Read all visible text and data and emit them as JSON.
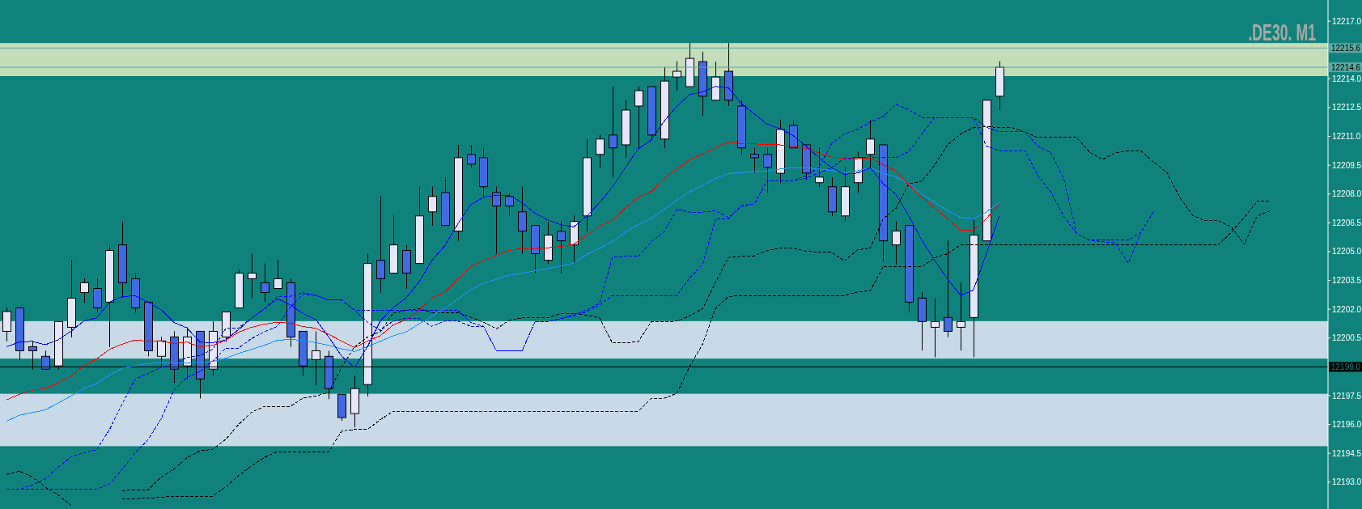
{
  "chart_data": {
    "type": "candlestick",
    "title": ".DE30. M1",
    "categories": [
      null,
      null,
      null,
      null,
      null,
      null,
      null,
      null,
      null,
      null,
      null,
      null,
      null,
      null,
      null,
      null,
      null,
      null,
      null,
      null,
      null,
      null,
      null,
      null,
      null,
      null,
      null,
      null,
      null,
      null,
      null,
      null,
      null,
      null,
      null,
      null,
      null,
      null,
      null,
      null,
      null,
      null,
      null,
      null,
      null,
      null,
      null,
      null,
      null,
      null,
      null,
      null,
      null,
      null,
      null,
      null,
      null,
      null,
      null,
      null,
      null,
      null,
      null,
      null,
      null,
      null,
      null,
      null,
      null,
      null,
      null,
      null,
      null,
      null,
      null,
      null,
      null,
      null,
      null,
      null,
      null,
      null,
      null,
      null,
      null,
      null,
      null,
      null,
      null,
      null,
      null,
      null,
      null,
      null,
      null,
      null,
      null,
      null,
      null,
      null,
      null,
      null,
      null
    ],
    "ohlc": [
      [
        12200.85,
        12202.09,
        12200.33,
        12201.88
      ],
      [
        12202.07,
        12202.07,
        12199.35,
        12199.84
      ],
      [
        12200.05,
        12200.33,
        12198.86,
        12199.84
      ],
      [
        12199.55,
        12199.84,
        12198.88,
        12198.88
      ],
      [
        12199.05,
        12201.36,
        12198.86,
        12201.36
      ],
      [
        12201.06,
        12204.57,
        12200.54,
        12202.58
      ],
      [
        12202.87,
        12203.6,
        12202.34,
        12203.38
      ],
      [
        12203.08,
        12203.6,
        12201.83,
        12202.07
      ],
      [
        12202.37,
        12205.35,
        12200.03,
        12205.06
      ],
      [
        12205.35,
        12206.57,
        12202.58,
        12203.38
      ],
      [
        12203.59,
        12203.88,
        12201.83,
        12202.07
      ],
      [
        12202.37,
        12202.37,
        12199.54,
        12199.84
      ],
      [
        12199.55,
        12200.57,
        12198.98,
        12200.35
      ],
      [
        12200.56,
        12200.85,
        12198.16,
        12198.88
      ],
      [
        12199.05,
        12201.06,
        12198.37,
        12200.56
      ],
      [
        12200.85,
        12200.85,
        12197.35,
        12198.37
      ],
      [
        12198.88,
        12201.37,
        12198.54,
        12200.85
      ],
      [
        12200.56,
        12201.86,
        12200.3,
        12201.86
      ],
      [
        12202.07,
        12204.05,
        12202.07,
        12203.88
      ],
      [
        12203.59,
        12204.89,
        12202.58,
        12203.88
      ],
      [
        12203.38,
        12204.38,
        12202.37,
        12202.87
      ],
      [
        12203.08,
        12204.57,
        12203.08,
        12203.59
      ],
      [
        12203.38,
        12203.59,
        12200.04,
        12200.55
      ],
      [
        12200.85,
        12200.85,
        12198.54,
        12199.05
      ],
      [
        12199.38,
        12200.85,
        12198.05,
        12199.84
      ],
      [
        12199.55,
        12199.84,
        12197.32,
        12197.87
      ],
      [
        12197.57,
        12197.57,
        12196.2,
        12196.36
      ],
      [
        12196.57,
        12198.54,
        12195.85,
        12197.87
      ],
      [
        12198.08,
        12204.89,
        12197.46,
        12204.38
      ],
      [
        12204.55,
        12207.89,
        12202.86,
        12203.59
      ],
      [
        12203.88,
        12206.88,
        12203.88,
        12205.35
      ],
      [
        12205.06,
        12205.35,
        12203.07,
        12203.88
      ],
      [
        12204.38,
        12208.39,
        12204.38,
        12206.86
      ],
      [
        12207.07,
        12208.39,
        12206.35,
        12207.87
      ],
      [
        12208.08,
        12208.88,
        12206.36,
        12206.36
      ],
      [
        12206.07,
        12210.56,
        12205.56,
        12209.89
      ],
      [
        12210.06,
        12210.56,
        12209.37,
        12209.55
      ],
      [
        12209.89,
        12210.39,
        12207.87,
        12208.38
      ],
      [
        12208.08,
        12208.39,
        12204.89,
        12207.37
      ],
      [
        12207.87,
        12208.08,
        12206.85,
        12207.37
      ],
      [
        12207.07,
        12208.39,
        12204.89,
        12206.07
      ],
      [
        12206.36,
        12206.36,
        12203.88,
        12204.89
      ],
      [
        12204.55,
        12206.57,
        12204.36,
        12205.86
      ],
      [
        12206.05,
        12206.57,
        12203.87,
        12205.56
      ],
      [
        12205.35,
        12206.88,
        12204.4,
        12206.57
      ],
      [
        12206.86,
        12210.87,
        12206.05,
        12209.89
      ],
      [
        12210.06,
        12211.08,
        12209.37,
        12210.86
      ],
      [
        12211.07,
        12213.6,
        12208.87,
        12210.4
      ],
      [
        12210.56,
        12212.88,
        12209.89,
        12212.37
      ],
      [
        12212.58,
        12213.6,
        12210.35,
        12213.38
      ],
      [
        12213.59,
        12213.59,
        12210.87,
        12211.07
      ],
      [
        12210.86,
        12214.61,
        12210.38,
        12213.88
      ],
      [
        12214.09,
        12214.91,
        12213.38,
        12214.39
      ],
      [
        12213.59,
        12215.86,
        12213.59,
        12215.06
      ],
      [
        12214.89,
        12215.4,
        12212.08,
        12213.09
      ],
      [
        12212.88,
        12214.89,
        12212.88,
        12214.09
      ],
      [
        12214.39,
        12215.86,
        12212.58,
        12212.88
      ],
      [
        12212.58,
        12212.88,
        12210.06,
        12210.4
      ],
      [
        12210.06,
        12210.4,
        12209.08,
        12209.89
      ],
      [
        12210.06,
        12210.4,
        12208.07,
        12209.39
      ],
      [
        12209.08,
        12211.87,
        12208.57,
        12211.36
      ],
      [
        12211.57,
        12211.87,
        12210.4,
        12210.4
      ],
      [
        12210.56,
        12210.56,
        12208.74,
        12209.09
      ],
      [
        12208.59,
        12210.42,
        12208.36,
        12208.88
      ],
      [
        12208.38,
        12208.88,
        12206.85,
        12207.07
      ],
      [
        12206.86,
        12209.39,
        12206.57,
        12208.38
      ],
      [
        12208.59,
        12210.2,
        12208.07,
        12209.89
      ],
      [
        12210.06,
        12211.87,
        12209.37,
        12210.86
      ],
      [
        12210.56,
        12210.56,
        12204.47,
        12205.56
      ],
      [
        12205.35,
        12206.57,
        12204.33,
        12206.07
      ],
      [
        12206.36,
        12206.36,
        12201.85,
        12202.37
      ],
      [
        12202.58,
        12202.89,
        12199.85,
        12201.36
      ],
      [
        12201.06,
        12202.58,
        12199.5,
        12201.36
      ],
      [
        12201.57,
        12205.58,
        12200.55,
        12200.85
      ],
      [
        12201.06,
        12203.38,
        12199.85,
        12201.36
      ],
      [
        12201.57,
        12206.67,
        12199.5,
        12205.86
      ],
      [
        12205.56,
        12212.88,
        12205.56,
        12212.88
      ],
      [
        12213.09,
        12214.91,
        12212.36,
        12214.6
      ],
      null,
      null,
      null,
      null,
      null,
      null,
      null,
      null,
      null,
      null,
      null,
      null,
      null,
      null,
      null,
      null,
      null,
      null,
      null,
      null,
      null,
      null,
      null,
      null,
      null
    ],
    "series": [
      {
        "type": "line",
        "color": "#000000",
        "line_style": "dashed",
        "values": [
          12193.4,
          12193.57,
          12193.27,
          12192.74,
          12192.35,
          12191.79,
          null,
          null,
          null,
          12192.56,
          12192.6,
          12192.6,
          12193.26,
          12193.68,
          12194.28,
          12194.62,
          12194.71,
          12195.22,
          12196,
          12196.63,
          12196.94,
          12196.94,
          12196.94,
          12197.37,
          12197.49,
          12197.67,
          12199,
          12200.03,
          12200.55,
          12200.83,
          12201.81,
          12201.95,
          12202.02,
          12201.83,
          12201.83,
          12201.83,
          12201.6,
          12201.32,
          12200.98,
          12201.43,
          12201.55,
          12201.55,
          12201.55,
          12201.78,
          12201.78,
          12201.69,
          12201.55,
          12200.24,
          12200.24,
          12200.31,
          12201.34,
          12201.34,
          12201.38,
          12201.65,
          12202.04,
          12203.4,
          12204.7,
          12204.75,
          12204.78,
          12205.05,
          12205.19,
          12205.19,
          12205.02,
          12204.97,
          12204.97,
          12204.52,
          12205.09,
          12205.19,
          12206.71,
          12207.27,
          12208.53,
          12208.67,
          12209.51,
          12210.56,
          12211.12,
          12211.45,
          12211.5,
          12211.47,
          12211.45,
          12211.22,
          12210.94,
          12210.94,
          12210.94,
          12210.94,
          12210.19,
          12209.79,
          12210.14,
          12210.24,
          12210.24,
          12209.65,
          12209.12,
          12207.83,
          12206.89,
          12206.6,
          12206.6,
          12206.29,
          12205.38,
          12206.85,
          12207.13,
          null,
          null,
          null,
          null
        ]
      },
      {
        "type": "line",
        "color": "#000000",
        "line_style": "dashed",
        "values": [
          null,
          null,
          null,
          null,
          null,
          null,
          null,
          null,
          null,
          12192.14,
          12192.14,
          12192.17,
          12192.21,
          12192.27,
          12192.27,
          12192.27,
          12192.27,
          12192.74,
          12193.33,
          12193.85,
          12194.28,
          12194.59,
          12194.59,
          12194.59,
          12194.59,
          12194.59,
          12195.66,
          12195.74,
          12195.74,
          12196.25,
          12196.69,
          12196.69,
          12196.69,
          12196.69,
          12196.69,
          12196.69,
          12196.69,
          12196.69,
          12196.69,
          12196.69,
          12196.69,
          12196.69,
          12196.69,
          12196.69,
          12196.69,
          12196.69,
          12196.69,
          12196.69,
          12196.69,
          12196.69,
          12197.36,
          12197.36,
          12197.62,
          12199.03,
          12200.19,
          12202.04,
          12202.66,
          12202.72,
          12202.72,
          12202.72,
          12202.72,
          12202.72,
          12202.72,
          12202.72,
          12202.72,
          12202.72,
          12202.9,
          12202.96,
          12204.22,
          12204.22,
          12204.22,
          12204.22,
          12204.68,
          12204.89,
          12205.35,
          12205.35,
          12205.35,
          12205.35,
          12205.35,
          12205.35,
          12205.35,
          12205.35,
          12205.35,
          12205.35,
          12205.35,
          12205.35,
          12205.35,
          12205.35,
          12205.35,
          12205.35,
          12205.35,
          12205.35,
          12205.35,
          12205.35,
          12205.35,
          12206.01,
          12206.78,
          12207.62,
          12207.62,
          null,
          null,
          null,
          null
        ]
      },
      {
        "type": "line",
        "color": "#0000ff",
        "line_style": "dashed",
        "values": [
          12192.63,
          12192.63,
          12192.84,
          12193.17,
          12193.76,
          12194.31,
          12194.52,
          12194.69,
          12195.74,
          12197.11,
          12198.37,
          12198.66,
          12198.97,
          12199.14,
          12199.49,
          12199.59,
          12199.91,
          12200.99,
          12201.03,
          12201.53,
          12202.02,
          12202.65,
          12202.67,
          12202.86,
          12202.72,
          12202.48,
          12202.48,
          12201.95,
          12201.95,
          12201.95,
          12201.95,
          12201.95,
          12201.95,
          12201.95,
          12201.95,
          12201.95,
          12201.32,
          12201.11,
          12199.84,
          12199.84,
          12199.84,
          12201.36,
          12201.36,
          12201.51,
          12201.72,
          12201.96,
          12202.31,
          12204.7,
          12204.75,
          12204.75,
          12205.5,
          12206.03,
          12207.2,
          12207.06,
          12207.06,
          12207.13,
          12206.78,
          12207.34,
          12207.48,
          12208.7,
          12208.7,
          12208.7,
          12208.95,
          12209.37,
          12210.63,
          12211.12,
          12211.36,
          12211.75,
          12212.03,
          12212.67,
          12212.38,
          12211.99,
          12211.99,
          12211.99,
          12211.99,
          12211.99,
          12211.47,
          12211.24,
          12211.24,
          12211.24,
          12210.49,
          12210.14,
          12208.81,
          12205.94,
          12205.59,
          12205.59,
          12205.59,
          12205.59,
          12206.01,
          12207.13,
          null,
          null,
          null,
          null,
          null,
          null,
          null,
          null,
          null,
          null,
          null,
          null,
          null
        ]
      },
      {
        "type": "line",
        "color": "#0000ff",
        "line_style": "dashed",
        "values": [
          12192.63,
          12192.63,
          12192.63,
          12192.63,
          12192.63,
          12192.63,
          12192.63,
          12192.63,
          12192.91,
          12193.68,
          12194.54,
          12195.22,
          12196.3,
          12197.8,
          12198.45,
          12198.75,
          12199.28,
          12199.98,
          12199.98,
          12200.47,
          12200.82,
          12201.1,
          12202.09,
          12202.79,
          12202.72,
          12202.48,
          12202.48,
          12201.95,
          12201.32,
          12200.9,
          12201.39,
          12201.53,
          12201.53,
          12201.11,
          12201.39,
          12201.39,
          12201.11,
          12201.11,
          12199.84,
          12199.84,
          12199.84,
          12201.36,
          12201.36,
          12201.51,
          12201.65,
          12201.87,
          12202.22,
          12202.72,
          12202.72,
          12202.72,
          12202.72,
          12202.72,
          12202.72,
          12203.64,
          12204.33,
          12206.71,
          12206.71,
          12207.41,
          12207.48,
          12208.7,
          12208.7,
          12208.7,
          12208.81,
          12209.09,
          12209.37,
          12209.86,
          12209.9,
          12209.9,
          12209.9,
          12209.9,
          12210.21,
          12211.12,
          12211.99,
          12211.99,
          12211.99,
          12211.99,
          12210.49,
          12210.26,
          12210.26,
          12210.26,
          12208.95,
          12208.11,
          12206.85,
          12205.94,
          12205.59,
          12205.52,
          12205.45,
          12204.4,
          12206.01,
          12207.13,
          null,
          null,
          null,
          null,
          null,
          null,
          null,
          null,
          null,
          null,
          null,
          null,
          null
        ]
      },
      {
        "type": "line",
        "color": "#1e90ff",
        "values": [
          12196.17,
          12196.48,
          12196.62,
          12196.76,
          12197.11,
          12197.49,
          12197.88,
          12198.13,
          12198.58,
          12198.93,
          12199.07,
          12199.17,
          12199.21,
          12199.18,
          12199.21,
          12199.24,
          12199.28,
          12199.45,
          12199.7,
          12199.91,
          12200.12,
          12200.38,
          12200.43,
          12200.38,
          12200.26,
          12200.12,
          12199.94,
          12199.8,
          12200.05,
          12200.33,
          12200.62,
          12200.82,
          12201.24,
          12201.64,
          12202.06,
          12202.51,
          12203,
          12203.35,
          12203.56,
          12203.77,
          12203.88,
          12204,
          12204.12,
          12204.26,
          12204.4,
          12204.86,
          12205.17,
          12205.52,
          12206.01,
          12206.4,
          12206.71,
          12207.2,
          12207.69,
          12208.11,
          12208.46,
          12208.81,
          12209.06,
          12209.12,
          12209.16,
          12209.2,
          12209.3,
          12209.37,
          12209.37,
          12209.3,
          12209.23,
          12209.12,
          12209.2,
          12209.37,
          12209.09,
          12208.88,
          12208.53,
          12208,
          12207.55,
          12207.13,
          12206.78,
          12206.71,
          12207.06,
          12207.55,
          null,
          null,
          null,
          null,
          null,
          null,
          null,
          null,
          null,
          null,
          null,
          null,
          null,
          null,
          null,
          null,
          null,
          null,
          null,
          null,
          null,
          null,
          null,
          null,
          null
        ]
      },
      {
        "type": "line",
        "color": "#ff0000",
        "values": [
          12197.28,
          12197.57,
          12197.78,
          12197.88,
          12198.16,
          12198.51,
          12199.07,
          12199.42,
          12199.91,
          12200.19,
          12200.4,
          12200.33,
          12200.33,
          12200.22,
          12200.29,
          12200.05,
          12200.12,
          12200.38,
          12200.8,
          12201.06,
          12201.22,
          12201.33,
          12201.27,
          12201.1,
          12201.01,
          12200.69,
          12200.34,
          12200.01,
          12200.34,
          12200.62,
          12201.18,
          12201.46,
          12201.95,
          12202.58,
          12202.9,
          12203.56,
          12204.22,
          12204.54,
          12204.82,
          12205.06,
          12205.17,
          12205.14,
          12205.2,
          12205.27,
          12205.38,
          12205.87,
          12206.32,
          12206.64,
          12207.27,
          12207.83,
          12208.11,
          12208.81,
          12209.3,
          12209.79,
          12210.07,
          12210.42,
          12210.7,
          12210.63,
          12210.61,
          12210.56,
          12210.56,
          12210.49,
          12210.38,
          12210.14,
          12209.93,
          12209.84,
          12209.84,
          12209.89,
          12209.51,
          12209.2,
          12208.46,
          12207.83,
          12207.27,
          12206.71,
          12206.12,
          12206.12,
          12206.71,
          12207.48,
          null,
          null,
          null,
          null,
          null,
          null,
          null,
          null,
          null,
          null,
          null,
          null,
          null,
          null,
          null,
          null,
          null,
          null,
          null,
          null,
          null,
          null,
          null,
          null,
          null
        ]
      },
      {
        "type": "line",
        "color": "#0000ff",
        "values": [
          12200.05,
          12200.29,
          12200.33,
          12200.15,
          12200.4,
          12200.85,
          12201.39,
          12201.55,
          12202.37,
          12202.67,
          12202.69,
          12202.37,
          12201.97,
          12201.31,
          12201.03,
          12200.29,
          12200.26,
          12200.4,
          12200.94,
          12201.53,
          12202.02,
          12202.55,
          12202.23,
          12201.78,
          12201.46,
          12200.55,
          12199.56,
          12198.97,
          12200.05,
          12201.39,
          12202.09,
          12202.58,
          12203.42,
          12204.54,
          12205.31,
          12206.43,
          12207.44,
          12207.83,
          12207.94,
          12207.94,
          12207.55,
          12206.99,
          12206.65,
          12206.4,
          12206.29,
          12206.85,
          12207.55,
          12208.36,
          12209.37,
          12210.35,
          12210.8,
          12211.78,
          12212.57,
          12213.18,
          12213.32,
          12213.6,
          12213.53,
          12212.71,
          12212.17,
          12211.64,
          12211.4,
          12211.05,
          12210.5,
          12209.9,
          12209.37,
          12209.02,
          12209.09,
          12209.37,
          12208.53,
          12207.97,
          12206.85,
          12205.59,
          12204.54,
          12203.56,
          12202.72,
          12203,
          12204.89,
          12206.85,
          null,
          null,
          null,
          null,
          null,
          null,
          null,
          null,
          null,
          null,
          null,
          null,
          null,
          null,
          null,
          null,
          null,
          null,
          null,
          null,
          null,
          null,
          null,
          null,
          null
        ]
      }
    ],
    "ylim": [
      12191.6,
      12218.1
    ],
    "yticks": [
      {
        "value": 12193,
        "label": "12193.0"
      },
      12194.5,
      {
        "value": 12196,
        "label": "12196.0"
      },
      12197.5,
      12200.5,
      {
        "value": 12202,
        "label": "12202.0"
      },
      12203.5,
      {
        "value": 12205,
        "label": "12205.0"
      },
      12206.5,
      {
        "value": 12208,
        "label": "12208.0"
      },
      12209.5,
      {
        "value": 12211,
        "label": "12211.0"
      },
      12212.5,
      {
        "value": 12214,
        "label": "12214.0"
      },
      {
        "value": 12217,
        "label": "12217.0"
      }
    ],
    "ref_lines": [
      {
        "axis": "y",
        "value": 12215.6,
        "label": "12215.6",
        "color": "#5aa9a3"
      },
      {
        "axis": "y",
        "value": 12214.6,
        "label": "12214.6",
        "color": "#5aa9a3"
      },
      {
        "axis": "y",
        "value": 12199.0,
        "label": "12199.0",
        "color": "#000000"
      }
    ],
    "bands": [
      {
        "axis": "y",
        "from": 12214.14,
        "to": 12215.86,
        "color": "#c2ddb8"
      },
      {
        "axis": "y",
        "from": 12199.43,
        "to": 12201.38,
        "color": "#c8d9e8"
      },
      {
        "axis": "y",
        "from": 12194.87,
        "to": 12197.6,
        "color": "#c8d9e8"
      }
    ],
    "tick_labels": "y"
  }
}
